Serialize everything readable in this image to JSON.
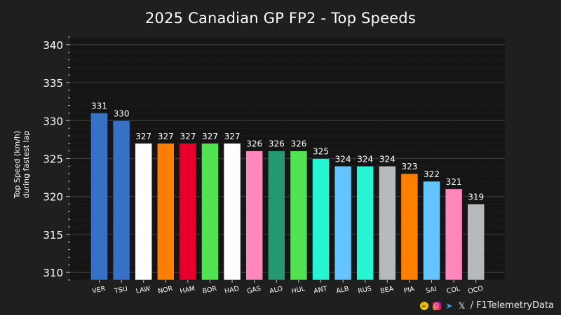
{
  "chart_data": {
    "type": "bar",
    "title": "2025 Canadian GP FP2 - Top Speeds",
    "ylabel_line1": "Top Speed (km/h)",
    "ylabel_line2": "during fastest lap",
    "xlabel": "",
    "ylim": [
      309,
      341
    ],
    "yticks": [
      310,
      315,
      320,
      325,
      330,
      335,
      340
    ],
    "grid": true,
    "categories": [
      "VER",
      "TSU",
      "LAW",
      "NOR",
      "HAM",
      "BOR",
      "HAD",
      "GAS",
      "ALO",
      "HUL",
      "ANT",
      "ALB",
      "RUS",
      "BEA",
      "PIA",
      "SAI",
      "COL",
      "OCO"
    ],
    "values": [
      331,
      330,
      327,
      327,
      327,
      327,
      327,
      326,
      326,
      326,
      325,
      324,
      324,
      324,
      323,
      322,
      321,
      319
    ],
    "colors": [
      "#3671C6",
      "#3671C6",
      "#FFFFFF",
      "#FF8000",
      "#E8002D",
      "#52E252",
      "#FFFFFF",
      "#FF87BC",
      "#229971",
      "#52E252",
      "#27F4D2",
      "#64C4FF",
      "#27F4D2",
      "#B6BABD",
      "#FF8000",
      "#64C4FF",
      "#FF87BC",
      "#B6BABD"
    ]
  },
  "footer": {
    "handle": "/ F1TelemetryData"
  }
}
